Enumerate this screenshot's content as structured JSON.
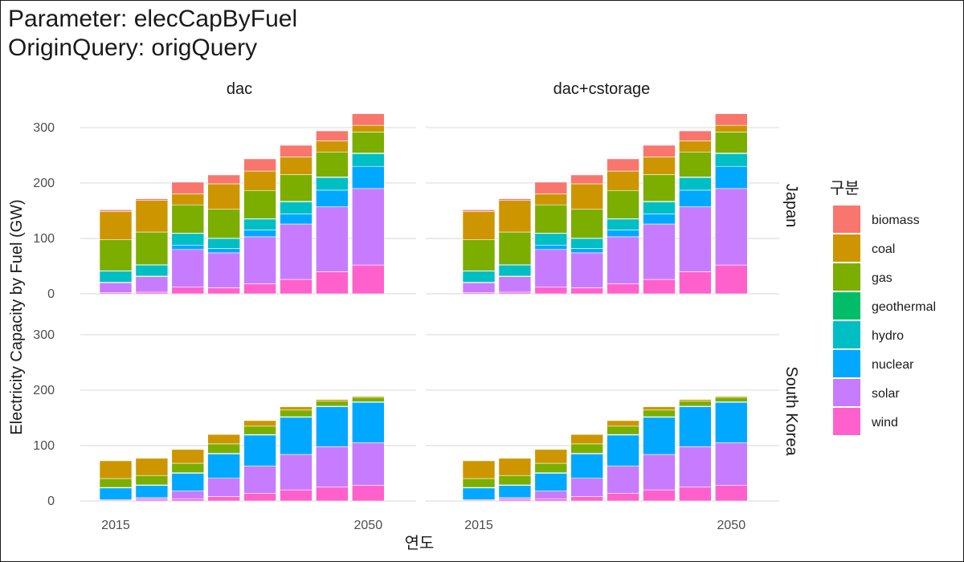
{
  "title_lines": [
    "Parameter: elecCapByFuel",
    "OriginQuery: origQuery"
  ],
  "chart_data": {
    "type": "bar",
    "stacked": true,
    "xlabel": "연도",
    "ylabel": "Electricity Capacity by Fuel (GW)",
    "ylim": [
      0,
      330
    ],
    "yticks": [
      0,
      100,
      200,
      300
    ],
    "x_values": [
      2015,
      2020,
      2025,
      2030,
      2035,
      2040,
      2045,
      2050
    ],
    "x_tick_labels": [
      "2015",
      "2050"
    ],
    "facet_columns": [
      "dac",
      "dac+cstorage"
    ],
    "facet_rows": [
      "Japan",
      "South Korea"
    ],
    "legend_title": "구분",
    "legend_position": "right",
    "grid": true,
    "fuels": [
      "biomass",
      "coal",
      "gas",
      "geothermal",
      "hydro",
      "nuclear",
      "solar",
      "wind"
    ],
    "colors": {
      "biomass": "#F8766D",
      "coal": "#CD9600",
      "gas": "#7CAE00",
      "geothermal": "#00BE67",
      "hydro": "#00BFC4",
      "nuclear": "#00A9FF",
      "solar": "#C77CFF",
      "wind": "#FF61CC"
    },
    "panels": [
      {
        "column": "dac",
        "row": "Japan",
        "series": {
          "wind": [
            2,
            3,
            12,
            11,
            18,
            26,
            40,
            52
          ],
          "solar": [
            18,
            28,
            68,
            63,
            85,
            100,
            117,
            138
          ],
          "nuclear": [
            1,
            1,
            8,
            8,
            12,
            18,
            30,
            40
          ],
          "hydro": [
            20,
            20,
            21,
            18,
            20,
            22,
            23,
            23
          ],
          "geothermal": [
            0.5,
            0.5,
            0.5,
            0.5,
            0.5,
            1,
            1,
            1
          ],
          "gas": [
            56,
            59,
            51,
            52,
            51,
            48,
            45,
            38
          ],
          "coal": [
            51,
            57,
            20,
            46,
            35,
            32,
            20,
            12
          ],
          "biomass": [
            3,
            3,
            21,
            16,
            22,
            21,
            18,
            21
          ]
        }
      },
      {
        "column": "dac+cstorage",
        "row": "Japan",
        "series": {
          "wind": [
            2,
            3,
            12,
            11,
            18,
            26,
            40,
            52
          ],
          "solar": [
            18,
            28,
            68,
            63,
            85,
            100,
            117,
            138
          ],
          "nuclear": [
            1,
            1,
            8,
            8,
            12,
            18,
            30,
            40
          ],
          "hydro": [
            20,
            20,
            21,
            18,
            20,
            22,
            23,
            23
          ],
          "geothermal": [
            0.5,
            0.5,
            0.5,
            0.5,
            0.5,
            1,
            1,
            1
          ],
          "gas": [
            56,
            59,
            51,
            52,
            51,
            48,
            45,
            38
          ],
          "coal": [
            51,
            57,
            20,
            46,
            35,
            32,
            20,
            12
          ],
          "biomass": [
            3,
            3,
            21,
            16,
            22,
            21,
            18,
            21
          ]
        }
      },
      {
        "column": "dac",
        "row": "South Korea",
        "series": {
          "wind": [
            0.5,
            3,
            4,
            8,
            14,
            20,
            25,
            28
          ],
          "solar": [
            2,
            3,
            14,
            33,
            49,
            64,
            73,
            77
          ],
          "nuclear": [
            21,
            22,
            32,
            44,
            56,
            67,
            72,
            73
          ],
          "hydro": [
            1,
            1,
            1,
            1,
            1,
            1,
            1,
            1
          ],
          "geothermal": [
            0,
            0,
            0,
            0,
            0,
            0,
            0,
            0
          ],
          "gas": [
            16,
            17,
            17,
            17,
            15,
            12,
            9,
            8
          ],
          "coal": [
            32,
            31,
            25,
            17,
            10,
            6,
            3,
            2
          ],
          "biomass": [
            0,
            0,
            0,
            0,
            0,
            0,
            1,
            1
          ]
        }
      },
      {
        "column": "dac+cstorage",
        "row": "South Korea",
        "series": {
          "wind": [
            0.5,
            3,
            4,
            8,
            14,
            20,
            25,
            28
          ],
          "solar": [
            2,
            3,
            14,
            33,
            49,
            64,
            73,
            77
          ],
          "nuclear": [
            21,
            22,
            32,
            44,
            56,
            67,
            72,
            73
          ],
          "hydro": [
            1,
            1,
            1,
            1,
            1,
            1,
            1,
            1
          ],
          "geothermal": [
            0,
            0,
            0,
            0,
            0,
            0,
            0,
            0
          ],
          "gas": [
            16,
            17,
            17,
            17,
            15,
            12,
            9,
            8
          ],
          "coal": [
            32,
            31,
            25,
            17,
            10,
            6,
            3,
            2
          ],
          "biomass": [
            0,
            0,
            0,
            0,
            0,
            0,
            1,
            1
          ]
        }
      }
    ]
  }
}
